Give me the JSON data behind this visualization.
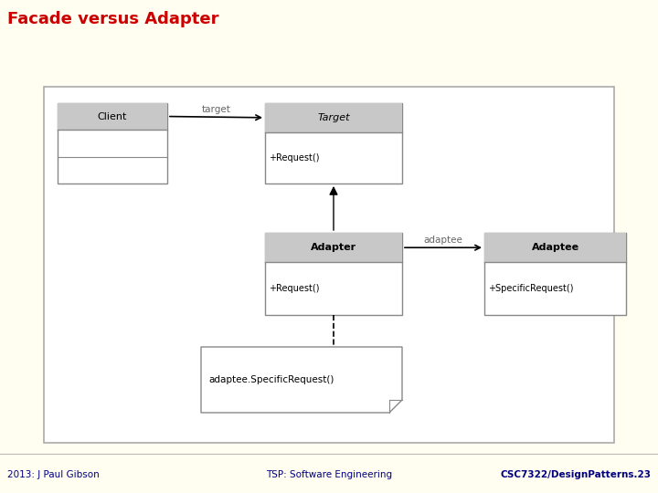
{
  "title": "Facade versus Adapter",
  "bg_color": "#FFFEF0",
  "diagram_bg": "#FFFFFF",
  "footer_left": "2013: J Paul Gibson",
  "footer_center": "TSP: Software Engineering",
  "footer_right": "CSC7322/DesignPatterns.23",
  "title_color": "#CC0000",
  "footer_color": "#000080",
  "class_border": "#888888",
  "class_header_bg": "#C8C8C8",
  "target_method": "+Request()",
  "adapter_method": "+Request()",
  "adaptee_method": "+SpecificRequest()",
  "note_text": "adaptee.SpecificRequest()"
}
